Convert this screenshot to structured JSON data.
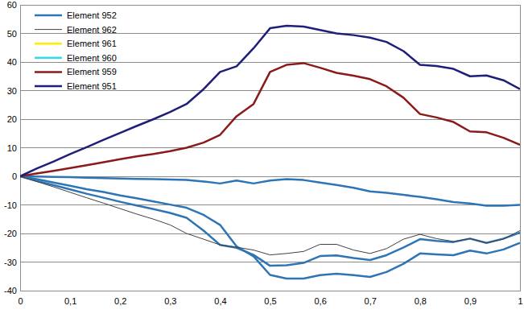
{
  "chart_data": {
    "type": "line",
    "x": [
      0,
      0.033,
      0.067,
      0.1,
      0.133,
      0.167,
      0.2,
      0.233,
      0.267,
      0.3,
      0.333,
      0.367,
      0.4,
      0.433,
      0.467,
      0.5,
      0.533,
      0.567,
      0.6,
      0.633,
      0.667,
      0.7,
      0.733,
      0.767,
      0.8,
      0.833,
      0.867,
      0.9,
      0.933,
      0.967,
      1
    ],
    "xlim": [
      0,
      1
    ],
    "ylim": [
      -40,
      60
    ],
    "xticks": [
      0,
      {
        "value": 0.1,
        "label": "0,1"
      },
      {
        "value": 0.2,
        "label": "0,2"
      },
      {
        "value": 0.3,
        "label": "0,3"
      },
      {
        "value": 0.4,
        "label": "0,4"
      },
      {
        "value": 0.5,
        "label": "0,5"
      },
      {
        "value": 0.6,
        "label": "0,6"
      },
      {
        "value": 0.7,
        "label": "0,7"
      },
      {
        "value": 0.8,
        "label": "0,8"
      },
      {
        "value": 0.9,
        "label": "0,9"
      },
      1
    ],
    "yticks": [
      -40,
      -30,
      -20,
      -10,
      0,
      10,
      20,
      30,
      40,
      50,
      60
    ],
    "grid": true,
    "legend": "upper left",
    "series": [
      {
        "color": "#2e75b6",
        "values": [
          0,
          -1,
          -2.2,
          -3.3,
          -4.5,
          -5.5,
          -6.7,
          -7.7,
          -8.8,
          -9.9,
          -11,
          -13.5,
          -17,
          -24.5,
          -28,
          -34.5,
          -35.8,
          -35.8,
          -34.6,
          -34.1,
          -34.6,
          -35.2,
          -33.5,
          -30.6,
          -27,
          -27.3,
          -27.6,
          -26,
          -27,
          -25.6,
          -23.3
        ]
      },
      {
        "color": "#2e75b6",
        "values": [
          0,
          -1.6,
          -3.1,
          -4.6,
          -6.1,
          -7.5,
          -8.9,
          -10.2,
          -11.5,
          -12.8,
          -14.5,
          -19,
          -24,
          -25,
          -27.5,
          -31.3,
          -31.1,
          -30.3,
          -27.9,
          -27.7,
          -28.6,
          -29.3,
          -27.6,
          -24.9,
          -22,
          -22.6,
          -23,
          -21.8,
          -23.3,
          -21.8,
          -19.7
        ]
      },
      {
        "name": "Element 952",
        "color": "#2e75b6",
        "values": [
          0,
          -0.1,
          -0.2,
          -0.3,
          -0.5,
          -0.6,
          -0.8,
          -0.9,
          -1,
          -1.1,
          -1.3,
          -1.8,
          -2.5,
          -1.5,
          -2.5,
          -1.5,
          -1,
          -1.3,
          -2.2,
          -3,
          -4,
          -5.3,
          -5.8,
          -6.5,
          -7.2,
          -8,
          -9,
          -9.5,
          -10.3,
          -10.3,
          -10
        ]
      },
      {
        "name": "Element 962",
        "color": "#404040",
        "values": [
          0,
          -1.8,
          -3.7,
          -5.6,
          -7.5,
          -9.4,
          -11.3,
          -13.2,
          -15,
          -17,
          -20,
          -22,
          -24,
          -24.8,
          -25.8,
          -27.5,
          -27,
          -26.3,
          -23.8,
          -23.8,
          -25.8,
          -27,
          -25.3,
          -22,
          -20.3,
          -21.8,
          -22.8,
          -21.8,
          -23.3,
          -22,
          -19
        ]
      },
      {
        "name": "Element 961",
        "color": "#ffee00",
        "values": [
          null,
          null,
          null,
          null,
          null,
          null,
          null,
          null,
          null,
          null,
          null,
          null,
          null,
          null,
          null,
          null,
          null,
          null,
          null,
          null,
          null,
          null,
          null,
          null,
          null,
          null,
          null,
          null,
          null,
          null,
          null
        ]
      },
      {
        "name": "Element 960",
        "color": "#33ddee",
        "values": [
          null,
          null,
          null,
          null,
          null,
          null,
          null,
          null,
          null,
          null,
          null,
          null,
          null,
          null,
          null,
          null,
          null,
          null,
          null,
          null,
          null,
          null,
          null,
          null,
          null,
          null,
          null,
          null,
          null,
          null,
          null
        ]
      },
      {
        "name": "Element 959",
        "color": "#8b1a1a",
        "values": [
          0,
          1,
          1.9,
          2.9,
          3.9,
          4.9,
          6,
          7,
          7.8,
          8.8,
          10,
          11.8,
          14.5,
          21,
          25.3,
          36.5,
          39,
          39.6,
          38,
          36.2,
          35.2,
          34,
          31.5,
          27.5,
          21.8,
          20.6,
          19,
          15.7,
          15.4,
          13.5,
          11
        ]
      },
      {
        "name": "Element 951",
        "color": "#1f1f7a",
        "values": [
          0,
          2.7,
          5.2,
          7.8,
          10.2,
          12.8,
          15.2,
          17.6,
          20,
          22.5,
          25.3,
          30.5,
          36.5,
          38.5,
          44.8,
          51.8,
          52.7,
          52.4,
          51.2,
          50,
          49.4,
          48.5,
          47,
          43.8,
          39,
          38.6,
          37.6,
          35,
          35.3,
          33.6,
          30.5
        ]
      }
    ]
  }
}
